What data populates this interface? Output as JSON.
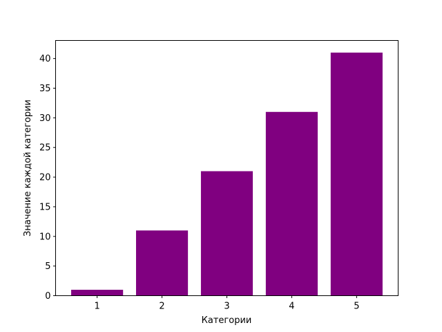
{
  "chart_data": {
    "type": "bar",
    "categories": [
      "1",
      "2",
      "3",
      "4",
      "5"
    ],
    "x": [
      1,
      2,
      3,
      4,
      5
    ],
    "values": [
      1,
      11,
      21,
      31,
      41
    ],
    "title": "",
    "xlabel": "Категории",
    "ylabel": "Значение каждой категории",
    "xlim": [
      0.36,
      5.64
    ],
    "ylim": [
      0,
      43.05
    ],
    "yticks": [
      0,
      5,
      10,
      15,
      20,
      25,
      30,
      35,
      40
    ],
    "xticks": [
      1,
      2,
      3,
      4,
      5
    ],
    "bar_color": "#800080",
    "grid": false,
    "legend": "none"
  }
}
